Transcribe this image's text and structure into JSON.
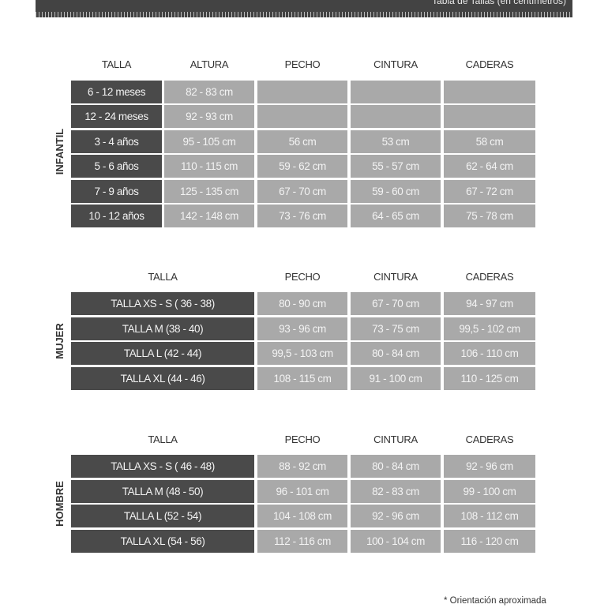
{
  "header": {
    "title": "Tabla de Tallas (en centímetros)"
  },
  "infantil": {
    "label": "INFANTIL",
    "columns": [
      "TALLA",
      "ALTURA",
      "PECHO",
      "CINTURA",
      "CADERAS"
    ],
    "rows": [
      [
        "6 - 12 meses",
        "82 - 83 cm",
        "",
        "",
        ""
      ],
      [
        "12 - 24 meses",
        "92 - 93 cm",
        "",
        "",
        ""
      ],
      [
        "3 - 4 años",
        "95 - 105 cm",
        "56 cm",
        "53 cm",
        "58 cm"
      ],
      [
        "5 - 6 años",
        "110 - 115 cm",
        "59 - 62 cm",
        "55 - 57 cm",
        "62 - 64 cm"
      ],
      [
        "7 - 9 años",
        "125 - 135 cm",
        "67 - 70 cm",
        "59 - 60 cm",
        "67 - 72 cm"
      ],
      [
        "10 - 12 años",
        "142 - 148 cm",
        "73 - 76 cm",
        "64 - 65 cm",
        "75 - 78 cm"
      ]
    ]
  },
  "mujer": {
    "label": "MUJER",
    "columns": [
      "TALLA",
      "PECHO",
      "CINTURA",
      "CADERAS"
    ],
    "rows": [
      [
        "TALLA XS - S ( 36 - 38)",
        "80 - 90 cm",
        "67 - 70 cm",
        "94 - 97 cm"
      ],
      [
        "TALLA M (38 - 40)",
        "93 - 96 cm",
        "73 - 75 cm",
        "99,5 - 102 cm"
      ],
      [
        "TALLA L (42 - 44)",
        "99,5 - 103 cm",
        "80 - 84 cm",
        "106 - 110 cm"
      ],
      [
        "TALLA XL (44 - 46)",
        "108 - 115 cm",
        "91 - 100 cm",
        "110 - 125 cm"
      ]
    ]
  },
  "hombre": {
    "label": "HOMBRE",
    "columns": [
      "TALLA",
      "PECHO",
      "CINTURA",
      "CADERAS"
    ],
    "rows": [
      [
        "TALLA XS - S ( 46 - 48)",
        "88 - 92 cm",
        "80 - 84 cm",
        "92 - 96 cm"
      ],
      [
        "TALLA M (48 - 50)",
        "96 - 101 cm",
        "82 - 83 cm",
        "99 - 100 cm"
      ],
      [
        "TALLA L (52 - 54)",
        "104 - 108 cm",
        "92 - 96 cm",
        "108 - 112 cm"
      ],
      [
        "TALLA XL (54 - 56)",
        "112 - 116 cm",
        "100 - 104 cm",
        "116 - 120 cm"
      ]
    ]
  },
  "footnote": "* Orientación aproximada"
}
